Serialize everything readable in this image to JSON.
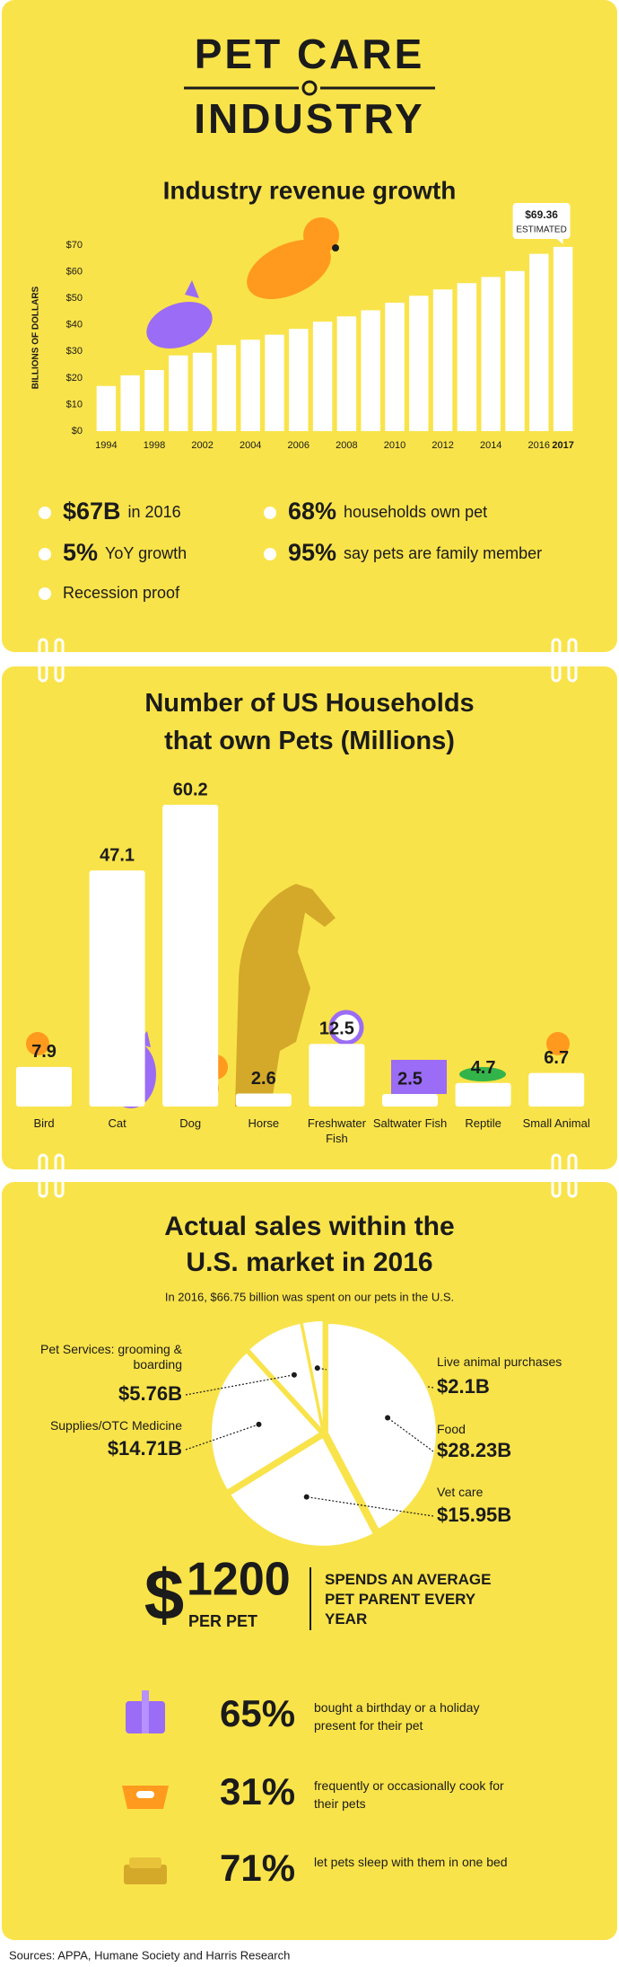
{
  "header": {
    "title_line1": "PET CARE",
    "title_line2": "INDUSTRY"
  },
  "chart_data": [
    {
      "type": "bar",
      "title": "Industry revenue growth",
      "y_label": "BILLIONS OF DOLLARS",
      "categories": [
        "1994",
        null,
        "1998",
        null,
        "2002",
        null,
        "2004",
        null,
        "2006",
        null,
        "2008",
        null,
        "2010",
        null,
        "2012",
        null,
        "2014",
        null,
        "2016",
        "2017"
      ],
      "values": [
        17,
        21,
        23,
        28.5,
        29.5,
        32.4,
        34.4,
        36.3,
        38.5,
        41.2,
        43.2,
        45.5,
        48.35,
        50.96,
        53.33,
        55.72,
        58.04,
        60.28,
        66.75,
        69.36
      ],
      "color": "#ffffff",
      "ylim": [
        0,
        70
      ],
      "yticks": [
        {
          "value": 0,
          "label": "$0"
        },
        {
          "value": 10,
          "label": "$10"
        },
        {
          "value": 20,
          "label": "$20"
        },
        {
          "value": 30,
          "label": "$30"
        },
        {
          "value": 40,
          "label": "$40"
        },
        {
          "value": 50,
          "label": "$50"
        },
        {
          "value": 60,
          "label": "$60"
        },
        {
          "value": 70,
          "label": "$70"
        }
      ],
      "annotation": {
        "text": "$69.36",
        "note": "ESTIMATED"
      }
    },
    {
      "type": "bar",
      "title": "Number of US Households that own Pets (Millions)",
      "categories": [
        "Bird",
        "Cat",
        "Dog",
        "Horse",
        "Freshwater Fish",
        "Saltwater Fish",
        "Reptile",
        "Small Animal"
      ],
      "values": [
        7.9,
        47.1,
        60.2,
        2.6,
        12.5,
        2.5,
        4.7,
        6.7
      ],
      "color": "#ffffff"
    },
    {
      "type": "pie",
      "title": "Actual sales within the U.S. market in 2016",
      "subtitle": "In 2016, $66.75 billion was spent on our pets in the U.S.",
      "categories": [
        "Live animal purchases",
        "Food",
        "Vet care",
        "Supplies/OTC Medicine",
        "Pet Services: grooming & boarding"
      ],
      "values": [
        2.1,
        28.23,
        15.95,
        14.71,
        5.76
      ],
      "value_labels": [
        "$2.1B",
        "$28.23B",
        "$15.95B",
        "$14.71B",
        "$5.76B"
      ],
      "color": "#ffffff"
    }
  ],
  "stats": [
    {
      "value": "$67B",
      "text": "in 2016"
    },
    {
      "value": "5%",
      "text": "YoY growth"
    },
    {
      "text": "Recession proof"
    },
    {
      "value": "68%",
      "text": "households own pet"
    },
    {
      "value": "95%",
      "text": "say pets are family member"
    }
  ],
  "spending": {
    "symbol": "$",
    "amount": "1200",
    "unit": "PER PET",
    "text": "SPENDS AN AVERAGE PET PARENT EVERY YEAR"
  },
  "facts": [
    {
      "value": "65%",
      "text": "bought a birthday or a holiday present for their pet"
    },
    {
      "value": "31%",
      "text": "frequently or occasionally cook for their pets"
    },
    {
      "value": "71%",
      "text": "let pets sleep with them in one bed"
    }
  ],
  "sources": "Sources: APPA, Humane Society and Harris Research"
}
